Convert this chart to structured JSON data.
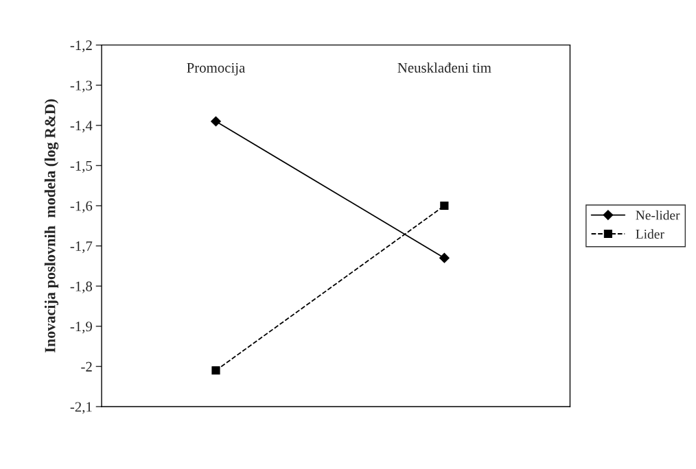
{
  "chart_data": {
    "type": "line",
    "ylabel": "Inovacija poslovnih  modela (log R&D)",
    "categories": [
      "Promocija",
      "Neusklađeni tim"
    ],
    "series": [
      {
        "name": "Ne-lider",
        "color": "#000000",
        "values": [
          -1.39,
          -1.73
        ],
        "marker": "diamond",
        "line_style": "solid"
      },
      {
        "name": "Lider",
        "color": "#000000",
        "values": [
          -2.01,
          -1.6
        ],
        "marker": "square",
        "line_style": "dashed"
      }
    ],
    "ylim": [
      -2.1,
      -1.2
    ],
    "yticks": [
      {
        "value": -2.1,
        "label": "-2,1"
      },
      {
        "value": -2.0,
        "label": "-2"
      },
      {
        "value": -1.9,
        "label": "-1,9"
      },
      {
        "value": -1.8,
        "label": "-1,8"
      },
      {
        "value": -1.7,
        "label": "-1,7"
      },
      {
        "value": -1.6,
        "label": "-1,6"
      },
      {
        "value": -1.5,
        "label": "-1,5"
      },
      {
        "value": -1.4,
        "label": "-1,4"
      },
      {
        "value": -1.3,
        "label": "-1,3"
      },
      {
        "value": -1.2,
        "label": "-1,2"
      }
    ],
    "grid": false,
    "legend": "right"
  }
}
